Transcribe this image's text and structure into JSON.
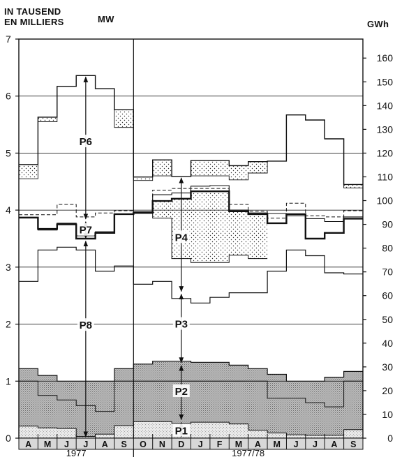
{
  "chart_data": {
    "type": "line",
    "left_axis": {
      "title_line1": "IN TAUSEND",
      "title_line2": "EN MILLIERS",
      "unit": "MW",
      "ylim": [
        0,
        7
      ],
      "ticks": [
        "0",
        "1",
        "2",
        "3",
        "4",
        "5",
        "6",
        "7"
      ]
    },
    "right_axis": {
      "unit": "GWh",
      "ylim": [
        0,
        168
      ],
      "ticks": [
        "0",
        "10",
        "20",
        "30",
        "40",
        "50",
        "60",
        "70",
        "80",
        "90",
        "100",
        "110",
        "120",
        "130",
        "140",
        "150",
        "160"
      ]
    },
    "months": [
      "A",
      "M",
      "J",
      "J",
      "A",
      "S",
      "O",
      "N",
      "D",
      "J",
      "F",
      "M",
      "A",
      "M",
      "J",
      "J",
      "A",
      "S"
    ],
    "periods": [
      {
        "label": "1977",
        "start": 0,
        "end": 6
      },
      {
        "label": "1977/78",
        "start": 6,
        "end": 18
      }
    ],
    "series": {
      "upper_envelope": [
        4.8,
        5.63,
        6.17,
        6.36,
        6.13,
        5.76,
        4.58,
        4.88,
        4.59,
        4.87,
        4.87,
        4.78,
        4.85,
        4.86,
        5.67,
        5.58,
        5.25,
        4.45
      ],
      "upper_inner": [
        4.55,
        5.55,
        6.17,
        6.36,
        6.13,
        5.45,
        4.52,
        4.6,
        4.59,
        4.6,
        4.6,
        4.53,
        4.65,
        4.86,
        5.67,
        5.58,
        5.25,
        4.39
      ],
      "dashed_line": [
        3.92,
        3.92,
        4.1,
        3.88,
        3.95,
        3.99,
        3.97,
        4.35,
        4.38,
        4.38,
        4.38,
        4.1,
        3.98,
        3.86,
        4.12,
        3.9,
        3.88,
        3.99
      ],
      "solid_mid": [
        3.86,
        3.65,
        3.77,
        3.55,
        3.62,
        3.93,
        3.97,
        4.27,
        4.3,
        4.42,
        4.43,
        4.0,
        3.95,
        3.94,
        3.9,
        3.85,
        3.8,
        3.88
      ],
      "thick_line": [
        3.87,
        3.67,
        3.75,
        3.5,
        3.6,
        3.93,
        3.95,
        4.16,
        4.2,
        4.33,
        4.33,
        3.98,
        3.93,
        3.77,
        3.93,
        3.5,
        3.6,
        3.85
      ],
      "stippled_lower": [
        3.87,
        3.67,
        3.75,
        3.5,
        3.6,
        3.93,
        3.95,
        3.86,
        3.15,
        3.08,
        3.08,
        3.21,
        3.15,
        3.77,
        3.93,
        3.5,
        3.6,
        3.85
      ],
      "line_3": [
        2.75,
        3.3,
        3.35,
        3.3,
        2.93,
        3.02,
        2.7,
        2.75,
        2.45,
        2.37,
        2.47,
        2.55,
        2.55,
        2.93,
        3.3,
        3.2,
        2.9,
        2.88
      ],
      "gray_band_top": [
        1.22,
        1.1,
        1.0,
        1.0,
        1.0,
        1.22,
        1.3,
        1.35,
        1.35,
        1.33,
        1.33,
        1.28,
        1.22,
        1.12,
        1.0,
        1.0,
        1.07,
        1.17
      ],
      "gray_mid": [
        1.0,
        0.75,
        0.67,
        0.57,
        0.47,
        1.0,
        1.0,
        1.0,
        1.0,
        1.0,
        1.0,
        1.0,
        1.0,
        0.7,
        0.7,
        0.62,
        0.55,
        1.0
      ],
      "light_top": [
        0.21,
        0.18,
        0.17,
        0.03,
        0.07,
        0.22,
        0.29,
        0.29,
        0.26,
        0.28,
        0.28,
        0.25,
        0.14,
        0.09,
        0.06,
        0.05,
        0.05,
        0.15
      ]
    },
    "annotations": [
      {
        "label": "P6",
        "month_index": 3,
        "y_from": 6.36,
        "y_to": 3.82,
        "label_y": 5.2
      },
      {
        "label": "P7",
        "month_index": 3,
        "y_from": 3.82,
        "y_to": 3.48,
        "label_y": 3.65
      },
      {
        "label": "P8",
        "month_index": 3,
        "y_from": 3.48,
        "y_to": 0.0,
        "label_y": 1.98
      },
      {
        "label": "P4",
        "month_index": 8,
        "y_from": 4.59,
        "y_to": 2.55,
        "label_y": 3.52
      },
      {
        "label": "P3",
        "month_index": 8,
        "y_from": 2.55,
        "y_to": 1.3,
        "label_y": 2.0
      },
      {
        "label": "P2",
        "month_index": 8,
        "y_from": 1.3,
        "y_to": 0.3,
        "label_y": 0.82
      },
      {
        "label": "P1",
        "month_index": 8,
        "y_from": 0.3,
        "y_to": 0.0,
        "label_y": 0.13
      }
    ],
    "grid": true
  }
}
